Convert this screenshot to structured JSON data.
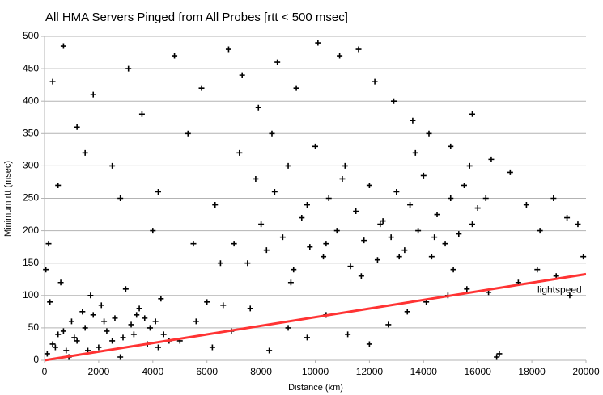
{
  "chart_data": {
    "type": "scatter",
    "title": "All HMA Servers Pinged from All Probes [rtt < 500 msec]",
    "x_label": "Distance (km)",
    "y_label": "Minimum rtt (msec)",
    "xlim": [
      0,
      20000
    ],
    "xticks": [
      0,
      2000,
      4000,
      6000,
      8000,
      10000,
      12000,
      14000,
      16000,
      18000,
      20000
    ],
    "ylim": [
      0,
      500
    ],
    "yticks": [
      0,
      50,
      100,
      150,
      200,
      250,
      300,
      350,
      400,
      450,
      500
    ],
    "grid": true,
    "series": [
      {
        "color": "#000000",
        "x": [
          100,
          300,
          500,
          800,
          1000,
          1200,
          1500,
          1800,
          2000,
          2300,
          2600,
          2900,
          3200,
          3500,
          3800,
          4100,
          4400,
          200,
          600,
          900,
          1400,
          1700,
          2100,
          2500,
          3000,
          3400,
          3900,
          4300,
          50,
          150,
          400,
          700,
          1100,
          1600,
          2200,
          2800,
          3300,
          3700,
          4200,
          4600,
          7000,
          7500,
          8000,
          8200,
          8500,
          8800,
          9000,
          9200,
          9500,
          9800,
          10000,
          10300,
          10500,
          10800,
          11000,
          11300,
          11500,
          11800,
          12000,
          12300,
          12500,
          12800,
          13000,
          13300,
          13500,
          13800,
          14000,
          14300,
          14500,
          14800,
          15000,
          15300,
          15500,
          15800,
          16000,
          7200,
          7800,
          8400,
          9100,
          9700,
          10400,
          11100,
          11700,
          12400,
          13100,
          13700,
          14400,
          15100,
          15700,
          16300,
          300,
          700,
          1200,
          1800,
          2500,
          3100,
          3600,
          4200,
          4800,
          5300,
          5800,
          6300,
          6800,
          7300,
          7900,
          8600,
          9300,
          10100,
          10900,
          11600,
          12200,
          12900,
          13600,
          14200,
          15000,
          15800,
          16500,
          17200,
          17800,
          18300,
          18800,
          19300,
          19700,
          5500,
          6000,
          6500,
          1500,
          2800,
          4000,
          500,
          5000,
          5600,
          6200,
          6900,
          7600,
          8300,
          9000,
          9700,
          10400,
          11200,
          12000,
          12700,
          13400,
          14100,
          14900,
          15600,
          16400,
          16800,
          17500,
          18200,
          18900,
          19400,
          19900,
          16700,
          6600
        ],
        "values": [
          10,
          25,
          40,
          15,
          60,
          30,
          50,
          70,
          20,
          45,
          65,
          35,
          55,
          80,
          25,
          60,
          40,
          90,
          120,
          5,
          75,
          100,
          85,
          30,
          110,
          70,
          50,
          95,
          140,
          180,
          20,
          45,
          35,
          15,
          60,
          5,
          40,
          65,
          20,
          30,
          180,
          150,
          210,
          170,
          260,
          190,
          300,
          140,
          220,
          175,
          330,
          160,
          250,
          200,
          280,
          145,
          230,
          185,
          270,
          155,
          215,
          190,
          260,
          170,
          240,
          200,
          285,
          160,
          225,
          180,
          250,
          195,
          270,
          210,
          235,
          320,
          280,
          350,
          120,
          240,
          180,
          300,
          130,
          210,
          160,
          320,
          190,
          140,
          300,
          250,
          430,
          485,
          360,
          410,
          300,
          450,
          380,
          260,
          470,
          350,
          420,
          240,
          480,
          440,
          390,
          460,
          420,
          490,
          470,
          480,
          430,
          400,
          370,
          350,
          330,
          380,
          310,
          290,
          240,
          200,
          250,
          220,
          210,
          180,
          90,
          150,
          320,
          250,
          200,
          270,
          30,
          60,
          20,
          45,
          80,
          15,
          50,
          35,
          70,
          40,
          25,
          55,
          75,
          90,
          100,
          110,
          105,
          10,
          120,
          140,
          130,
          100,
          160,
          5,
          85
        ]
      },
      {
        "name": "lightspeed",
        "type": "line",
        "color": "#ff3333",
        "x": [
          0,
          20000
        ],
        "values": [
          0,
          133
        ]
      }
    ]
  }
}
